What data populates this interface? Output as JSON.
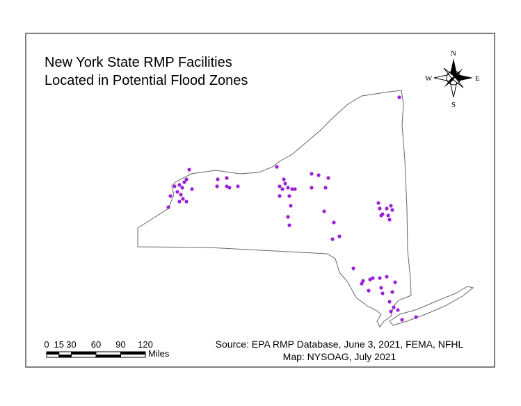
{
  "title": [
    "New York State RMP Facilities",
    "Located in Potential Flood Zones"
  ],
  "compass": {
    "north": "N",
    "south": "S",
    "east": "E",
    "west": "W"
  },
  "scale_bar": {
    "ticks": [
      0,
      15,
      30,
      60,
      90,
      120
    ],
    "unit": "Miles"
  },
  "source": [
    "Source: EPA RMP Database, June 3, 2021, FEMA, NFHL",
    "Map: NYSOAG, July 2021"
  ]
}
